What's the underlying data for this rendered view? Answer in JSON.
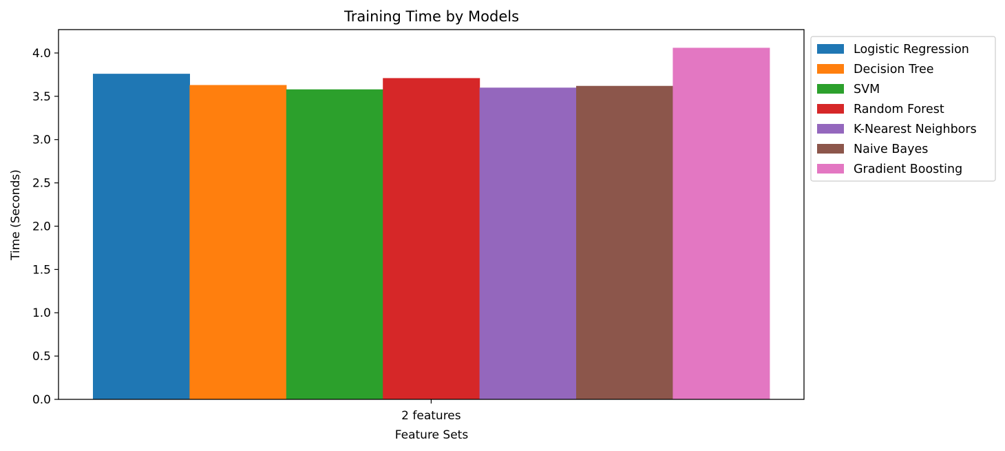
{
  "chart_data": {
    "type": "bar",
    "title": "Training Time by Models",
    "xlabel": "Feature Sets",
    "ylabel": "Time (Seconds)",
    "categories": [
      "2 features"
    ],
    "ylim": [
      0,
      4.27
    ],
    "yticks": [
      0.0,
      0.5,
      1.0,
      1.5,
      2.0,
      2.5,
      3.0,
      3.5,
      4.0
    ],
    "grid": false,
    "legend_position": "outside-top-right",
    "series": [
      {
        "name": "Logistic Regression",
        "values": [
          3.76
        ],
        "color": "#1f77b4"
      },
      {
        "name": "Decision Tree",
        "values": [
          3.63
        ],
        "color": "#ff7f0e"
      },
      {
        "name": "SVM",
        "values": [
          3.58
        ],
        "color": "#2ca02c"
      },
      {
        "name": "Random Forest",
        "values": [
          3.71
        ],
        "color": "#d62728"
      },
      {
        "name": "K-Nearest Neighbors",
        "values": [
          3.6
        ],
        "color": "#9467bd"
      },
      {
        "name": "Naive Bayes",
        "values": [
          3.62
        ],
        "color": "#8c564b"
      },
      {
        "name": "Gradient Boosting",
        "values": [
          4.06
        ],
        "color": "#e377c2"
      }
    ]
  }
}
